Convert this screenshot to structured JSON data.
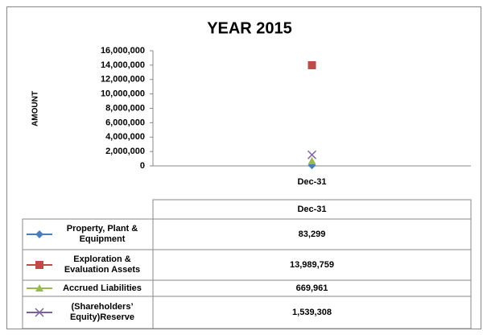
{
  "chart_data": {
    "type": "line",
    "title": "YEAR 2015",
    "ylabel": "AMOUNT",
    "categories": [
      "Dec-31"
    ],
    "series": [
      {
        "name": "Property, Plant & Equipment",
        "color": "#4a7ebb",
        "marker": "diamond",
        "values": [
          83299
        ],
        "value_labels": [
          "83,299"
        ]
      },
      {
        "name": "Exploration & Evaluation Assets",
        "color": "#be4b48",
        "marker": "square",
        "values": [
          13989759
        ],
        "value_labels": [
          "13,989,759"
        ]
      },
      {
        "name": "Accrued Liabilities",
        "color": "#98b954",
        "marker": "triangle",
        "values": [
          669961
        ],
        "value_labels": [
          "669,961"
        ]
      },
      {
        "name": "(Shareholders’ Equity)Reserve",
        "color": "#7d60a0",
        "marker": "x",
        "values": [
          1539308
        ],
        "value_labels": [
          "1,539,308"
        ]
      }
    ],
    "ylim": [
      0,
      16000000
    ],
    "yticks": [
      0,
      {
        "value": 2000000,
        "label": "2,000,000"
      },
      {
        "value": 4000000,
        "label": "4,000,000"
      },
      {
        "value": 6000000,
        "label": "6,000,000"
      },
      {
        "value": 8000000,
        "label": "8,000,000"
      },
      {
        "value": 10000000,
        "label": "10,000,000"
      },
      {
        "value": 12000000,
        "label": "12,000,000"
      },
      {
        "value": 14000000,
        "label": "14,000,000"
      },
      {
        "value": 16000000,
        "label": "16,000,000"
      }
    ],
    "grid": false,
    "data_table": true
  }
}
